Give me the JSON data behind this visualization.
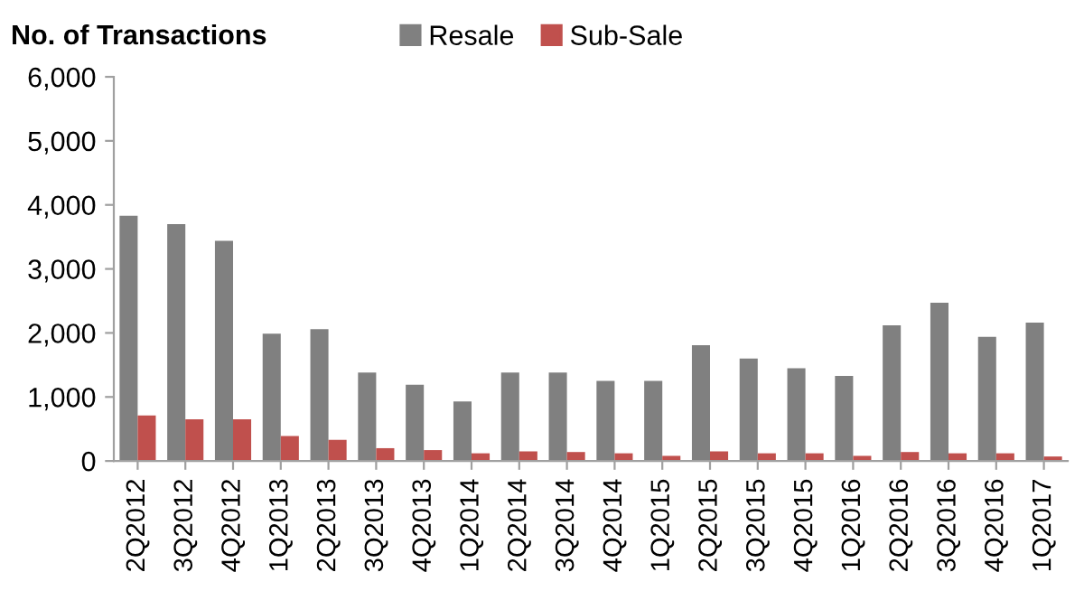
{
  "chart_data": {
    "type": "bar",
    "title": "No. of Transactions",
    "categories": [
      "2Q2012",
      "3Q2012",
      "4Q2012",
      "1Q2013",
      "2Q2013",
      "3Q2013",
      "4Q2013",
      "1Q2014",
      "2Q2014",
      "3Q2014",
      "4Q2014",
      "1Q2015",
      "2Q2015",
      "3Q2015",
      "4Q2015",
      "1Q2016",
      "2Q2016",
      "3Q2016",
      "4Q2016",
      "1Q2017"
    ],
    "series": [
      {
        "name": "Resale",
        "color": "#808080",
        "values": [
          3830,
          3700,
          3440,
          1990,
          2060,
          1380,
          1190,
          930,
          1380,
          1380,
          1250,
          1250,
          1810,
          1600,
          1450,
          1330,
          2120,
          2470,
          1940,
          2160
        ]
      },
      {
        "name": "Sub-Sale",
        "color": "#c0504d",
        "values": [
          710,
          650,
          650,
          390,
          330,
          200,
          170,
          120,
          150,
          140,
          120,
          80,
          150,
          120,
          120,
          80,
          140,
          120,
          120,
          70
        ]
      }
    ],
    "ylim": [
      0,
      6000
    ],
    "yticks": [
      {
        "value": 0,
        "label": "0"
      },
      {
        "value": 1000,
        "label": "1,000"
      },
      {
        "value": 2000,
        "label": "2,000"
      },
      {
        "value": 3000,
        "label": "3,000"
      },
      {
        "value": 4000,
        "label": "4,000"
      },
      {
        "value": 5000,
        "label": "5,000"
      },
      {
        "value": 6000,
        "label": "6,000"
      }
    ],
    "grid": false,
    "legend": "top"
  }
}
